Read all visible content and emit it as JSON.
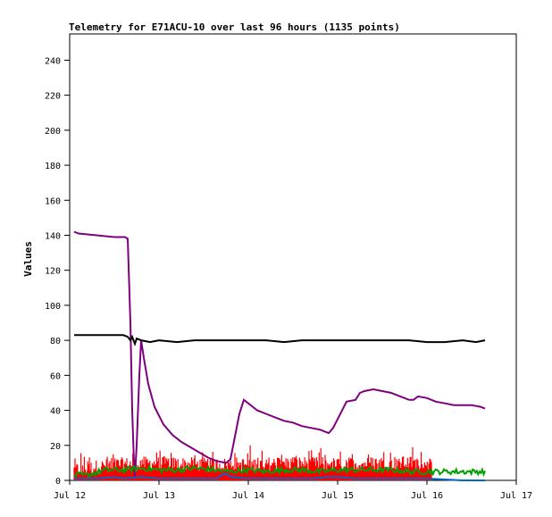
{
  "chart_data": {
    "type": "line",
    "title": "Telemetry for E71ACU-10 over last 96 hours (1135 points)",
    "xlabel": "",
    "ylabel": "Values",
    "ylim": [
      0,
      255
    ],
    "xlim": [
      0,
      5
    ],
    "x_tick_labels": [
      "Jul 12",
      "Jul 13",
      "Jul 14",
      "Jul 15",
      "Jul 16",
      "Jul 17"
    ],
    "y_ticks": [
      0,
      20,
      40,
      60,
      80,
      100,
      120,
      140,
      160,
      180,
      200,
      220,
      240
    ],
    "grid": false,
    "legend": "none",
    "series": [
      {
        "color": "#ff0000",
        "style": "noisy-fill",
        "points": [
          [
            0.05,
            6
          ],
          [
            0.5,
            9
          ],
          [
            1.0,
            10
          ],
          [
            1.5,
            9
          ],
          [
            2.0,
            9
          ],
          [
            2.5,
            10
          ],
          [
            3.0,
            9
          ],
          [
            3.5,
            10
          ],
          [
            4.0,
            10
          ],
          [
            4.05,
            9
          ]
        ],
        "spread": 4
      },
      {
        "color": "#7f007f",
        "points": [
          [
            0.05,
            142
          ],
          [
            0.1,
            141
          ],
          [
            0.3,
            140
          ],
          [
            0.5,
            139
          ],
          [
            0.62,
            139
          ],
          [
            0.65,
            138
          ],
          [
            0.68,
            90
          ],
          [
            0.7,
            40
          ],
          [
            0.72,
            10
          ],
          [
            0.73,
            2
          ],
          [
            0.75,
            20
          ],
          [
            0.78,
            60
          ],
          [
            0.8,
            80
          ],
          [
            0.83,
            70
          ],
          [
            0.88,
            55
          ],
          [
            0.95,
            42
          ],
          [
            1.05,
            32
          ],
          [
            1.15,
            26
          ],
          [
            1.25,
            22
          ],
          [
            1.35,
            19
          ],
          [
            1.45,
            16
          ],
          [
            1.55,
            13
          ],
          [
            1.65,
            11
          ],
          [
            1.75,
            10
          ],
          [
            1.8,
            12
          ],
          [
            1.85,
            25
          ],
          [
            1.9,
            38
          ],
          [
            1.95,
            46
          ],
          [
            2.0,
            44
          ],
          [
            2.1,
            40
          ],
          [
            2.2,
            38
          ],
          [
            2.3,
            36
          ],
          [
            2.4,
            34
          ],
          [
            2.5,
            33
          ],
          [
            2.6,
            31
          ],
          [
            2.7,
            30
          ],
          [
            2.8,
            29
          ],
          [
            2.9,
            27
          ],
          [
            2.95,
            30
          ],
          [
            3.0,
            35
          ],
          [
            3.05,
            40
          ],
          [
            3.1,
            45
          ],
          [
            3.2,
            46
          ],
          [
            3.25,
            50
          ],
          [
            3.3,
            51
          ],
          [
            3.4,
            52
          ],
          [
            3.5,
            51
          ],
          [
            3.6,
            50
          ],
          [
            3.7,
            48
          ],
          [
            3.8,
            46
          ],
          [
            3.85,
            46
          ],
          [
            3.9,
            48
          ],
          [
            4.0,
            47
          ],
          [
            4.1,
            45
          ],
          [
            4.2,
            44
          ],
          [
            4.3,
            43
          ],
          [
            4.4,
            43
          ],
          [
            4.5,
            43
          ],
          [
            4.6,
            42
          ],
          [
            4.65,
            41
          ]
        ]
      },
      {
        "color": "#000000",
        "points": [
          [
            0.05,
            83
          ],
          [
            0.2,
            83
          ],
          [
            0.4,
            83
          ],
          [
            0.6,
            83
          ],
          [
            0.65,
            82
          ],
          [
            0.68,
            80
          ],
          [
            0.7,
            82
          ],
          [
            0.73,
            78
          ],
          [
            0.75,
            81
          ],
          [
            0.8,
            80
          ],
          [
            0.9,
            79
          ],
          [
            1.0,
            80
          ],
          [
            1.2,
            79
          ],
          [
            1.4,
            80
          ],
          [
            1.6,
            80
          ],
          [
            1.8,
            80
          ],
          [
            2.0,
            80
          ],
          [
            2.2,
            80
          ],
          [
            2.4,
            79
          ],
          [
            2.6,
            80
          ],
          [
            2.8,
            80
          ],
          [
            3.0,
            80
          ],
          [
            3.2,
            80
          ],
          [
            3.4,
            80
          ],
          [
            3.6,
            80
          ],
          [
            3.8,
            80
          ],
          [
            4.0,
            79
          ],
          [
            4.2,
            79
          ],
          [
            4.4,
            80
          ],
          [
            4.55,
            79
          ],
          [
            4.65,
            80
          ]
        ]
      },
      {
        "color": "#00a000",
        "style": "noisy-line",
        "points": [
          [
            0.05,
            3
          ],
          [
            0.2,
            3
          ],
          [
            0.4,
            6
          ],
          [
            0.6,
            6
          ],
          [
            0.8,
            7
          ],
          [
            1.0,
            6
          ],
          [
            1.2,
            6
          ],
          [
            1.4,
            7
          ],
          [
            1.6,
            6
          ],
          [
            1.8,
            5
          ],
          [
            2.0,
            6
          ],
          [
            2.2,
            5
          ],
          [
            2.4,
            6
          ],
          [
            2.6,
            6
          ],
          [
            2.8,
            5
          ],
          [
            3.0,
            6
          ],
          [
            3.2,
            6
          ],
          [
            3.4,
            6
          ],
          [
            3.6,
            6
          ],
          [
            3.8,
            5
          ],
          [
            4.0,
            5
          ],
          [
            4.2,
            5
          ],
          [
            4.4,
            5
          ],
          [
            4.65,
            5
          ]
        ],
        "spread": 1.5
      },
      {
        "color": "#0066cc",
        "points": [
          [
            0.05,
            1
          ],
          [
            0.3,
            1
          ],
          [
            0.5,
            2
          ],
          [
            0.6,
            1
          ],
          [
            0.8,
            2
          ],
          [
            1.0,
            1
          ],
          [
            1.2,
            1
          ],
          [
            1.5,
            1
          ],
          [
            1.65,
            1
          ],
          [
            1.7,
            3
          ],
          [
            1.75,
            4
          ],
          [
            1.8,
            2
          ],
          [
            2.0,
            1
          ],
          [
            2.4,
            1
          ],
          [
            2.7,
            1
          ],
          [
            2.9,
            2
          ],
          [
            3.0,
            2
          ],
          [
            3.2,
            1
          ],
          [
            3.6,
            1
          ],
          [
            4.0,
            1
          ],
          [
            4.4,
            0
          ],
          [
            4.65,
            0
          ]
        ]
      }
    ]
  }
}
